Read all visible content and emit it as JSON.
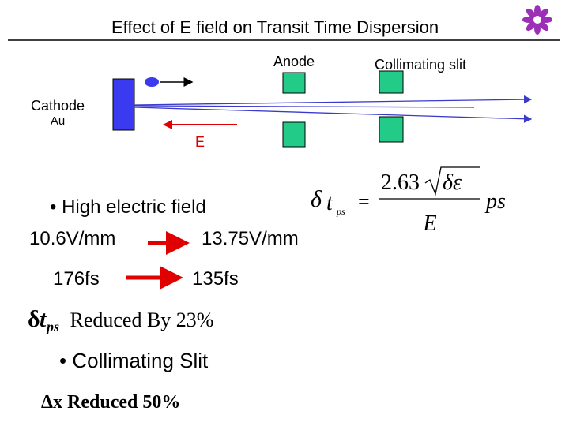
{
  "header": {
    "title": "Effect of  E field on Transit Time Dispersion"
  },
  "diagram": {
    "anode": "Anode",
    "slit": "Collimating slit",
    "cathode": "Cathode",
    "cathode_material": "Au",
    "field": "E"
  },
  "formula": {
    "delta": "δ",
    "t": "t",
    "sub": "ps",
    "equals": "=",
    "coefficient": "2.63",
    "radicand": "δε",
    "denominator": "E",
    "unit": "ps"
  },
  "points": {
    "field_bullet": "• High electric field",
    "field_from": "10.6V/mm",
    "field_to": "13.75V/mm",
    "time_from": "176fs",
    "time_to": "135fs",
    "dispersion": {
      "delta": "δ",
      "t": "t",
      "sub": "ps",
      "text": " Reduced By 23%"
    },
    "slit_bullet": "• Collimating Slit",
    "slit_result": "Δx Reduced 50%"
  }
}
